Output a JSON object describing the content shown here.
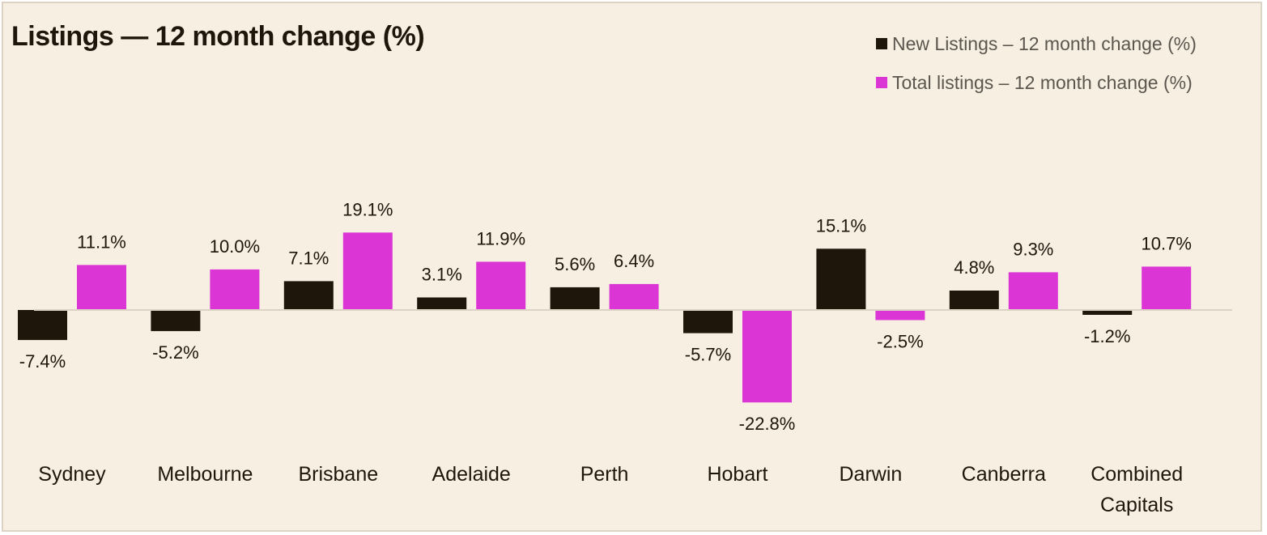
{
  "chart_data": {
    "type": "bar",
    "title": "Listings — 12 month change (%)",
    "xlabel": "",
    "ylabel": "",
    "categories": [
      "Sydney",
      "Melbourne",
      "Brisbane",
      "Adelaide",
      "Perth",
      "Hobart",
      "Darwin",
      "Canberra",
      "Combined Capitals"
    ],
    "series": [
      {
        "name": "New Listings – 12 month change (%)",
        "color": "#1e160b",
        "values": [
          -7.4,
          -5.2,
          7.1,
          3.1,
          5.6,
          -5.7,
          15.1,
          4.8,
          -1.2
        ],
        "labels": [
          "-7.4%",
          "-5.2%",
          "7.1%",
          "3.1%",
          "5.6%",
          "-5.7%",
          "15.1%",
          "4.8%",
          "-1.2%"
        ]
      },
      {
        "name": "Total listings – 12 month change (%)",
        "color": "#dc35d6",
        "values": [
          11.1,
          10.0,
          19.1,
          11.9,
          6.4,
          -22.8,
          -2.5,
          9.3,
          10.7
        ],
        "labels": [
          "11.1%",
          "10.0%",
          "19.1%",
          "11.9%",
          "6.4%",
          "-22.8%",
          "-2.5%",
          "9.3%",
          "10.7%"
        ]
      }
    ],
    "legend_position": "top-right",
    "grid": false,
    "zero_line_color": "#ddd3c4"
  }
}
